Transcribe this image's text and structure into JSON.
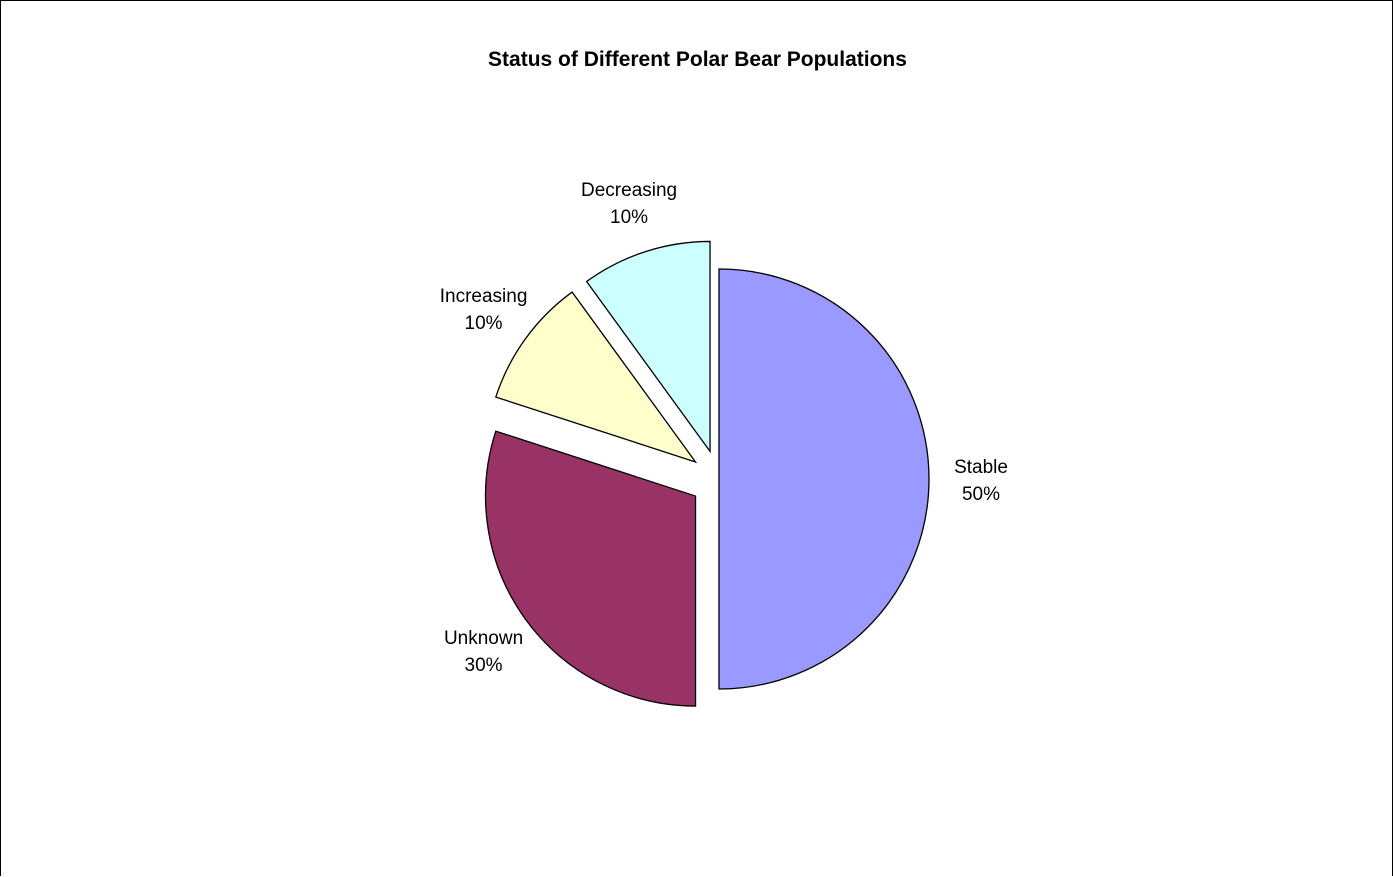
{
  "chart_data": {
    "type": "pie",
    "title": "Status of Different Polar Bear Populations",
    "slices": [
      {
        "label": "Stable",
        "value": 50,
        "value_label": "50%",
        "color": "#9999FF",
        "exploded": false
      },
      {
        "label": "Unknown",
        "value": 30,
        "value_label": "30%",
        "color": "#993366",
        "exploded": true
      },
      {
        "label": "Increasing",
        "value": 10,
        "value_label": "10%",
        "color": "#FFFFCC",
        "exploded": true
      },
      {
        "label": "Decreasing",
        "value": 10,
        "value_label": "10%",
        "color": "#CCFFFF",
        "exploded": true
      }
    ],
    "start_angle": "12 o'clock",
    "direction": "clockwise",
    "legend": "none"
  }
}
